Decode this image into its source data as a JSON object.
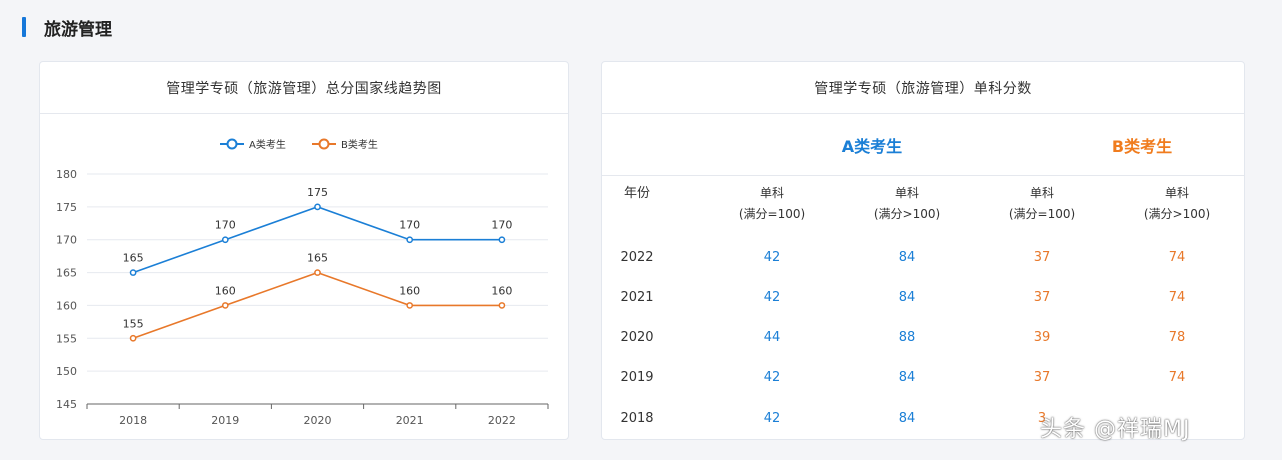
{
  "section": {
    "title": "旅游管理"
  },
  "chart_card": {
    "title": "管理学专硕（旅游管理）总分国家线趋势图"
  },
  "chart_data": {
    "type": "line",
    "x": [
      "2018",
      "2019",
      "2020",
      "2021",
      "2022"
    ],
    "series": [
      {
        "name": "A类考生",
        "color": "#1b7fd6",
        "values": [
          165,
          170,
          175,
          170,
          170
        ]
      },
      {
        "name": "B类考生",
        "color": "#e8782a",
        "values": [
          155,
          160,
          165,
          160,
          160
        ]
      }
    ],
    "yticks": [
      145,
      150,
      155,
      160,
      165,
      170,
      175,
      180
    ],
    "ylim": [
      145,
      180
    ],
    "legend": "top-center",
    "grid": true
  },
  "table_card": {
    "title": "管理学专硕（旅游管理）单科分数",
    "groups": [
      {
        "label": "A类考生",
        "color": "#1b7fd6"
      },
      {
        "label": "B类考生",
        "color": "#f07c1e"
      }
    ],
    "headers": [
      {
        "line1": "年份",
        "line2": ""
      },
      {
        "line1": "单科",
        "line2": "(满分=100)"
      },
      {
        "line1": "单科",
        "line2": "(满分>100)"
      },
      {
        "line1": "单科",
        "line2": "(满分=100)"
      },
      {
        "line1": "单科",
        "line2": "(满分>100)"
      }
    ],
    "rows": [
      {
        "year": "2022",
        "a1": "42",
        "a2": "84",
        "b1": "37",
        "b2": "74"
      },
      {
        "year": "2021",
        "a1": "42",
        "a2": "84",
        "b1": "37",
        "b2": "74"
      },
      {
        "year": "2020",
        "a1": "44",
        "a2": "88",
        "b1": "39",
        "b2": "78"
      },
      {
        "year": "2019",
        "a1": "42",
        "a2": "84",
        "b1": "37",
        "b2": "74"
      },
      {
        "year": "2018",
        "a1": "42",
        "a2": "84",
        "b1": "3",
        "b2": ""
      }
    ]
  },
  "watermark": {
    "text": "头条 @祥瑞MJ"
  }
}
